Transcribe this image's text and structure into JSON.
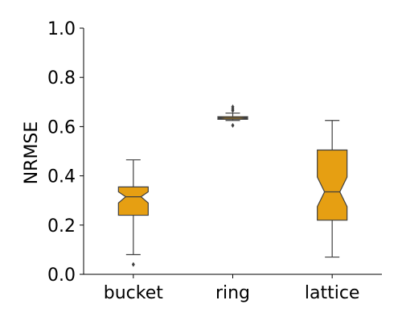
{
  "chart_data": {
    "type": "boxplot",
    "title": "",
    "xlabel": "",
    "ylabel": "NRMSE",
    "ylim": [
      0.0,
      1.0
    ],
    "yticks": [
      "0.0",
      "0.2",
      "0.4",
      "0.6",
      "0.8",
      "1.0"
    ],
    "notched": true,
    "categories": [
      "bucket",
      "ring",
      "lattice"
    ],
    "boxes": [
      {
        "category": "bucket",
        "whisker_low": 0.08,
        "q1": 0.24,
        "notch_low": 0.29,
        "median": 0.315,
        "notch_high": 0.335,
        "q3": 0.355,
        "whisker_high": 0.465,
        "outliers": [
          0.04
        ]
      },
      {
        "category": "ring",
        "whisker_low": 0.625,
        "q1": 0.63,
        "notch_low": 0.633,
        "median": 0.635,
        "notch_high": 0.637,
        "q3": 0.64,
        "whisker_high": 0.655,
        "outliers": [
          0.605,
          0.665,
          0.672,
          0.68
        ]
      },
      {
        "category": "lattice",
        "whisker_low": 0.07,
        "q1": 0.22,
        "notch_low": 0.275,
        "median": 0.335,
        "notch_high": 0.395,
        "q3": 0.505,
        "whisker_high": 0.625,
        "outliers": []
      }
    ],
    "colors": {
      "box_fill": "#E69F12",
      "line": "#3f3f3f",
      "axis": "#000000"
    },
    "grid": false,
    "legend": "none"
  }
}
